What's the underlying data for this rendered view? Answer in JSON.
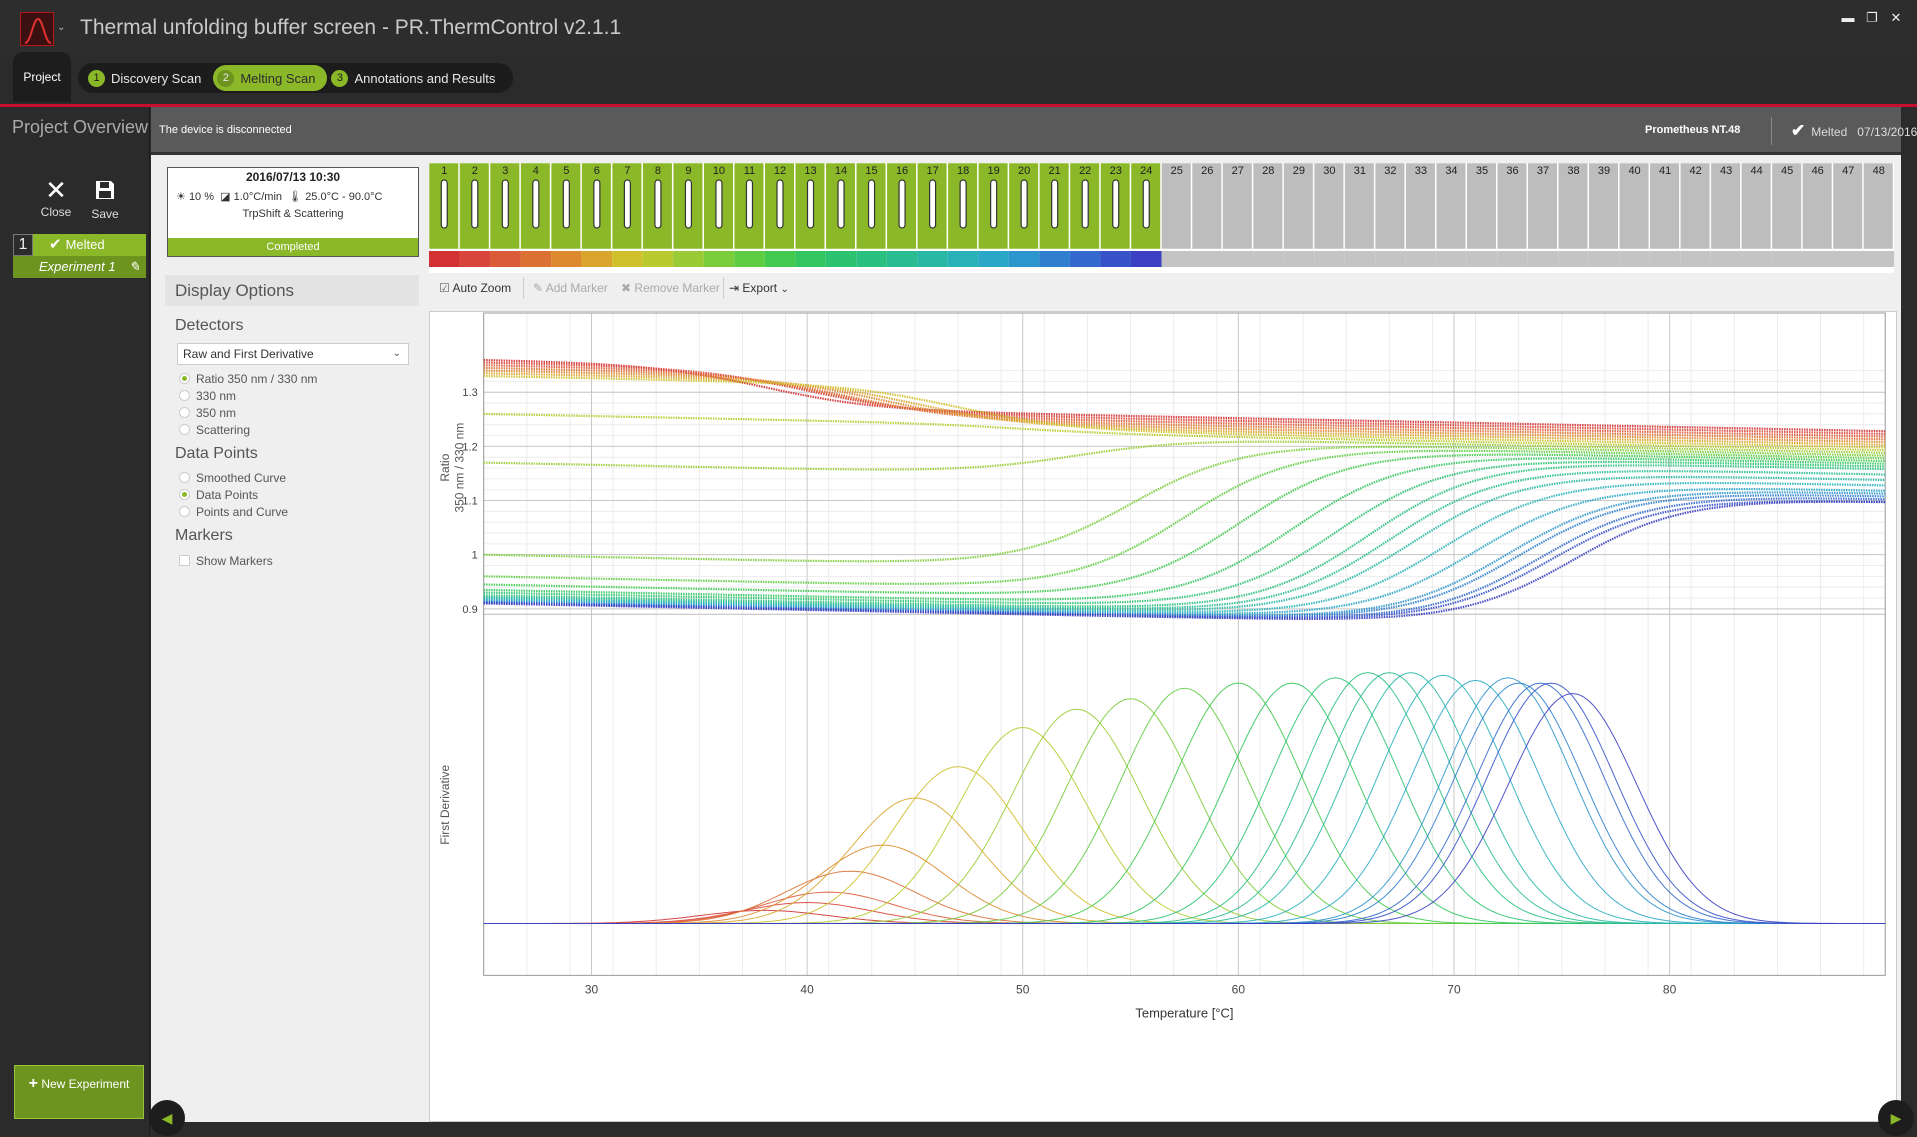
{
  "window": {
    "title": "Thermal unfolding buffer screen - PR.ThermControl v2.1.1",
    "controls": [
      "▬",
      "❐",
      "✕"
    ]
  },
  "nav": {
    "project_tab": "Project",
    "steps": [
      {
        "num": "1",
        "label": "Discovery Scan",
        "active": false
      },
      {
        "num": "2",
        "label": "Melting Scan",
        "active": true
      },
      {
        "num": "3",
        "label": "Annotations and Results",
        "active": false
      }
    ]
  },
  "left_panel": {
    "title": "Project Overview",
    "close_label": "Close",
    "save_label": "Save",
    "experiment": {
      "number": "1",
      "status": "Melted",
      "name": "Experiment 1"
    },
    "new_experiment_label": "New Experiment"
  },
  "status_bar": {
    "message": "The device is disconnected",
    "device": "Prometheus NT.48",
    "status": "Melted",
    "date": "07/13/2016"
  },
  "run": {
    "datetime": "2016/07/13 10:30",
    "excitation": "10 %",
    "ramp": "1.0°C/min",
    "temp_range": "25.0°C - 90.0°C",
    "mode": "TrpShift & Scattering",
    "state": "Completed"
  },
  "capillaries": {
    "total": 48,
    "filled": 24,
    "active_color": "#8ab828",
    "inactive_color": "#bdbdbd",
    "colors": [
      "#d33232",
      "#d8453a",
      "#db5a37",
      "#dc7134",
      "#dd8a2f",
      "#d9a52d",
      "#cfc02c",
      "#b8ca2e",
      "#9acb34",
      "#7ccd3b",
      "#5fcd43",
      "#43c94e",
      "#33c55f",
      "#2bc270",
      "#2ac07f",
      "#29bc91",
      "#29b8a4",
      "#29b3b9",
      "#2aa6c6",
      "#2c95cc",
      "#2f7fce",
      "#3469cd",
      "#3853c9",
      "#3c40c2"
    ]
  },
  "display_options": {
    "title": "Display Options",
    "detectors_title": "Detectors",
    "detector_select": "Raw and First Derivative",
    "detectors": [
      {
        "label": "Ratio 350 nm / 330 nm",
        "selected": true
      },
      {
        "label": "330 nm",
        "selected": false
      },
      {
        "label": "350 nm",
        "selected": false
      },
      {
        "label": "Scattering",
        "selected": false
      }
    ],
    "data_points_title": "Data Points",
    "data_points": [
      {
        "label": "Smoothed Curve",
        "selected": false
      },
      {
        "label": "Data Points",
        "selected": true
      },
      {
        "label": "Points and Curve",
        "selected": false
      }
    ],
    "markers_title": "Markers",
    "show_markers": "Show Markers"
  },
  "toolbar": {
    "auto_zoom": "Auto Zoom",
    "add_marker": "Add Marker",
    "remove_marker": "Remove Marker",
    "export": "Export"
  },
  "chart_data": {
    "type": "line",
    "xlabel": "Temperature [°C]",
    "x_ticks": [
      30,
      40,
      50,
      60,
      70,
      80
    ],
    "xlim": [
      25,
      90
    ],
    "top_ylabel": [
      "Ratio",
      "350 nm / 330 nm"
    ],
    "top_ylim": [
      0.89,
      1.38
    ],
    "top_y_ticks": [
      0.9,
      1,
      1.1,
      1.2,
      1.3
    ],
    "bottom_ylabel": "First Derivative",
    "grid": true,
    "legend": "none",
    "series_count": 24,
    "series_colors": [
      "#d33232",
      "#d8453a",
      "#db5a37",
      "#dc7134",
      "#dd8a2f",
      "#d9a52d",
      "#cfc02c",
      "#b8ca2e",
      "#9acb34",
      "#7ccd3b",
      "#5fcd43",
      "#43c94e",
      "#33c55f",
      "#2bc270",
      "#2ac07f",
      "#29bc91",
      "#29b8a4",
      "#29b3b9",
      "#2aa6c6",
      "#2c95cc",
      "#2f7fce",
      "#3469cd",
      "#3853c9",
      "#3c40c2"
    ],
    "series_tm": [
      38,
      40,
      41,
      42,
      43.5,
      45,
      47,
      50,
      52.5,
      55,
      57.5,
      60,
      62.5,
      64.5,
      66,
      67,
      68,
      69.5,
      71,
      72.5,
      73,
      74,
      74.5,
      75.5
    ],
    "series_folded_ratio": [
      1.36,
      1.355,
      1.35,
      1.345,
      1.34,
      1.335,
      1.33,
      1.26,
      1.17,
      1.0,
      0.96,
      0.945,
      0.935,
      0.93,
      0.925,
      0.922,
      0.92,
      0.918,
      0.916,
      0.914,
      0.913,
      0.912,
      0.911,
      0.91
    ],
    "series_unfolded_ratio": [
      1.28,
      1.275,
      1.27,
      1.265,
      1.26,
      1.255,
      1.25,
      1.245,
      1.24,
      1.235,
      1.23,
      1.225,
      1.22,
      1.215,
      1.21,
      1.2,
      1.19,
      1.18,
      1.17,
      1.165,
      1.16,
      1.155,
      1.15,
      1.15
    ],
    "series_deriv_peak": [
      0.05,
      0.08,
      0.12,
      0.2,
      0.3,
      0.48,
      0.6,
      0.75,
      0.82,
      0.86,
      0.9,
      0.92,
      0.92,
      0.94,
      0.96,
      0.96,
      0.96,
      0.95,
      0.93,
      0.94,
      0.92,
      0.92,
      0.92,
      0.88
    ]
  }
}
